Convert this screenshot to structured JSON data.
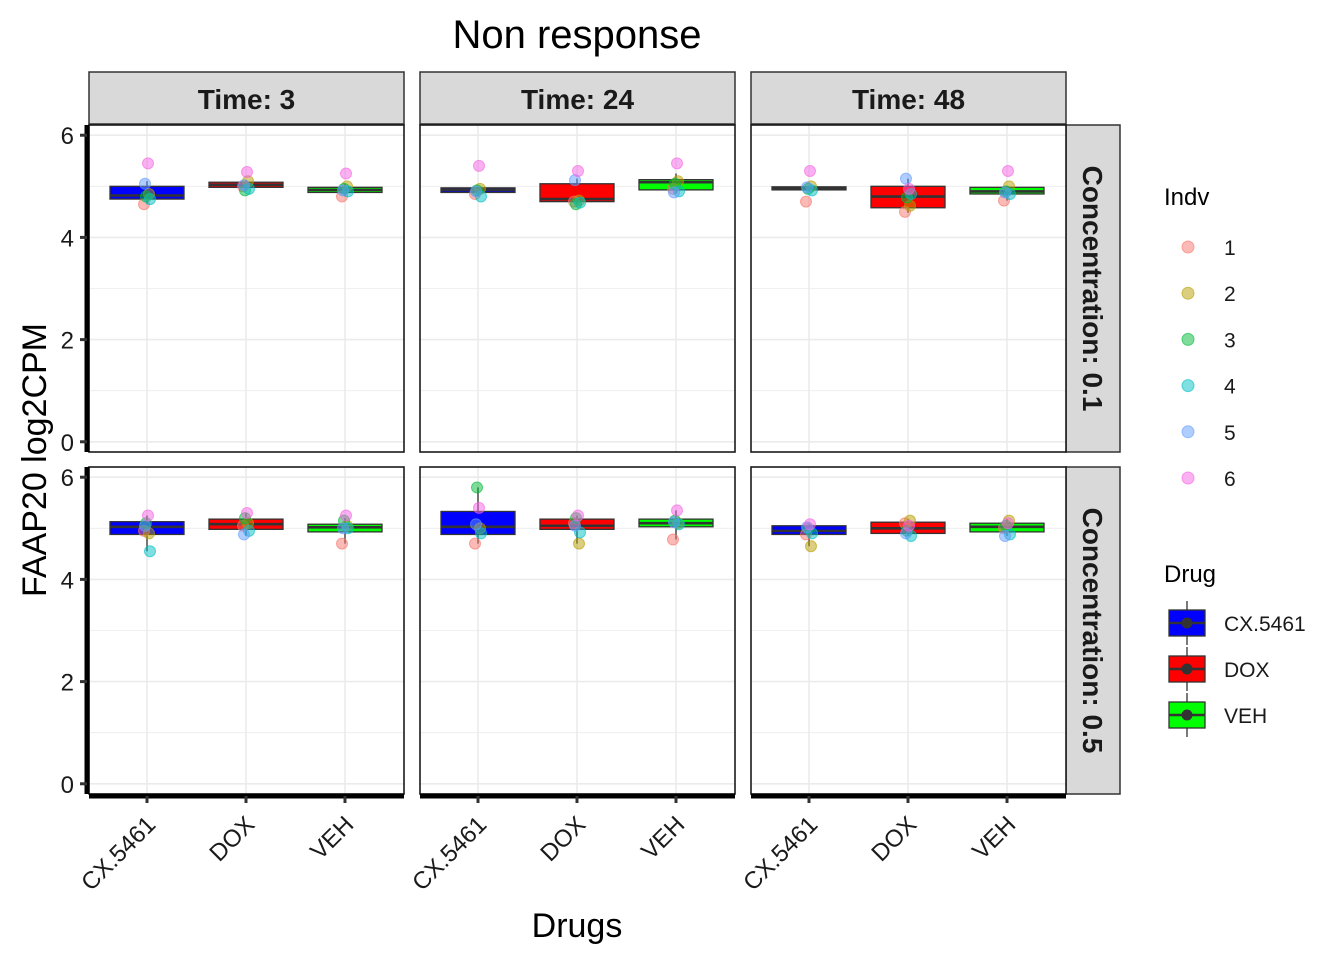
{
  "chart_data": {
    "type": "boxplot",
    "title": "Non response",
    "xlabel": "Drugs",
    "ylabel": "FAAP20  log2CPM",
    "ylim": [
      -0.2,
      6.2
    ],
    "yticks": [
      0,
      2,
      4,
      6
    ],
    "grid": true,
    "categories": [
      "CX.5461",
      "DOX",
      "VEH"
    ],
    "facet_cols": [
      "Time: 3",
      "Time: 24",
      "Time: 48"
    ],
    "facet_rows": [
      "Concentration: 0.1",
      "Concentration: 0.5"
    ],
    "legend_placement": "right",
    "drug_legend": {
      "title": "Drug",
      "items": [
        {
          "label": "CX.5461",
          "color": "#0000ff"
        },
        {
          "label": "DOX",
          "color": "#ff0000"
        },
        {
          "label": "VEH",
          "color": "#00ff00"
        }
      ]
    },
    "indv_legend": {
      "title": "Indv",
      "items": [
        {
          "label": "1",
          "color": "#f8766d"
        },
        {
          "label": "2",
          "color": "#b79f00"
        },
        {
          "label": "3",
          "color": "#00ba38"
        },
        {
          "label": "4",
          "color": "#00bfc4"
        },
        {
          "label": "5",
          "color": "#619cff"
        },
        {
          "label": "6",
          "color": "#f564e3"
        }
      ]
    },
    "panels": [
      {
        "row": 0,
        "col": 0,
        "boxes": [
          {
            "drug": "CX.5461",
            "q1": 4.75,
            "median": 4.82,
            "q3": 5.0,
            "whisker_low": 4.65,
            "whisker_high": 5.1,
            "points": [
              4.65,
              4.85,
              4.8,
              4.75,
              5.05,
              5.45
            ]
          },
          {
            "drug": "DOX",
            "q1": 4.98,
            "median": 5.03,
            "q3": 5.08,
            "whisker_low": 4.92,
            "whisker_high": 5.12,
            "points": [
              5.0,
              5.1,
              4.92,
              4.95,
              5.02,
              5.28
            ]
          },
          {
            "drug": "VEH",
            "q1": 4.88,
            "median": 4.93,
            "q3": 4.98,
            "whisker_low": 4.8,
            "whisker_high": 5.05,
            "points": [
              4.8,
              5.0,
              4.95,
              4.9,
              4.92,
              5.25
            ]
          }
        ]
      },
      {
        "row": 0,
        "col": 1,
        "boxes": [
          {
            "drug": "CX.5461",
            "q1": 4.88,
            "median": 4.93,
            "q3": 4.97,
            "whisker_low": 4.8,
            "whisker_high": 5.0,
            "points": [
              4.85,
              4.95,
              4.92,
              4.8,
              4.9,
              5.4
            ]
          },
          {
            "drug": "DOX",
            "q1": 4.7,
            "median": 4.75,
            "q3": 5.05,
            "whisker_low": 4.65,
            "whisker_high": 5.15,
            "points": [
              4.7,
              4.72,
              4.65,
              4.68,
              5.12,
              5.3
            ]
          },
          {
            "drug": "VEH",
            "q1": 4.93,
            "median": 5.08,
            "q3": 5.13,
            "whisker_low": 4.85,
            "whisker_high": 5.25,
            "points": [
              4.95,
              5.1,
              5.05,
              4.9,
              4.88,
              5.45
            ]
          }
        ]
      },
      {
        "row": 0,
        "col": 2,
        "boxes": [
          {
            "drug": "CX.5461",
            "q1": 4.93,
            "median": 4.96,
            "q3": 4.99,
            "whisker_low": 4.9,
            "whisker_high": 5.0,
            "points": [
              4.7,
              5.0,
              4.95,
              4.92,
              4.98,
              5.3
            ]
          },
          {
            "drug": "DOX",
            "q1": 4.58,
            "median": 4.8,
            "q3": 5.0,
            "whisker_low": 4.48,
            "whisker_high": 5.15,
            "points": [
              4.5,
              4.62,
              4.78,
              4.85,
              5.15,
              4.95
            ]
          },
          {
            "drug": "VEH",
            "q1": 4.85,
            "median": 4.9,
            "q3": 4.98,
            "whisker_low": 4.72,
            "whisker_high": 5.0,
            "points": [
              4.72,
              5.0,
              4.9,
              4.85,
              4.88,
              5.3
            ]
          }
        ]
      },
      {
        "row": 1,
        "col": 0,
        "boxes": [
          {
            "drug": "CX.5461",
            "q1": 4.88,
            "median": 5.03,
            "q3": 5.13,
            "whisker_low": 4.55,
            "whisker_high": 5.25,
            "points": [
              4.95,
              4.9,
              5.1,
              4.55,
              5.05,
              5.25
            ]
          },
          {
            "drug": "DOX",
            "q1": 4.98,
            "median": 5.08,
            "q3": 5.18,
            "whisker_low": 4.85,
            "whisker_high": 5.3,
            "points": [
              5.05,
              5.1,
              5.2,
              4.95,
              4.88,
              5.3
            ]
          },
          {
            "drug": "VEH",
            "q1": 4.93,
            "median": 5.02,
            "q3": 5.08,
            "whisker_low": 4.7,
            "whisker_high": 5.2,
            "points": [
              4.7,
              5.05,
              5.15,
              5.0,
              5.0,
              5.25
            ]
          }
        ]
      },
      {
        "row": 1,
        "col": 1,
        "boxes": [
          {
            "drug": "CX.5461",
            "q1": 4.88,
            "median": 5.03,
            "q3": 5.33,
            "whisker_low": 4.7,
            "whisker_high": 5.8,
            "points": [
              4.7,
              5.0,
              5.8,
              4.9,
              5.08,
              5.4
            ]
          },
          {
            "drug": "DOX",
            "q1": 4.98,
            "median": 5.05,
            "q3": 5.18,
            "whisker_low": 4.7,
            "whisker_high": 5.25,
            "points": [
              5.1,
              4.7,
              5.2,
              4.92,
              5.05,
              5.25
            ]
          },
          {
            "drug": "VEH",
            "q1": 5.03,
            "median": 5.1,
            "q3": 5.18,
            "whisker_low": 4.78,
            "whisker_high": 5.35,
            "points": [
              4.78,
              5.1,
              5.15,
              5.08,
              5.12,
              5.35
            ]
          }
        ]
      },
      {
        "row": 1,
        "col": 2,
        "boxes": [
          {
            "drug": "CX.5461",
            "q1": 4.88,
            "median": 4.95,
            "q3": 5.05,
            "whisker_low": 4.65,
            "whisker_high": 5.08,
            "points": [
              4.88,
              4.65,
              5.0,
              4.9,
              5.02,
              5.08
            ]
          },
          {
            "drug": "DOX",
            "q1": 4.9,
            "median": 5.0,
            "q3": 5.12,
            "whisker_low": 4.85,
            "whisker_high": 5.18,
            "points": [
              5.1,
              5.15,
              4.95,
              4.85,
              4.9,
              5.05
            ]
          },
          {
            "drug": "VEH",
            "q1": 4.93,
            "median": 5.03,
            "q3": 5.1,
            "whisker_low": 4.85,
            "whisker_high": 5.18,
            "points": [
              5.0,
              5.15,
              5.05,
              4.88,
              4.85,
              5.1
            ]
          }
        ]
      }
    ]
  }
}
